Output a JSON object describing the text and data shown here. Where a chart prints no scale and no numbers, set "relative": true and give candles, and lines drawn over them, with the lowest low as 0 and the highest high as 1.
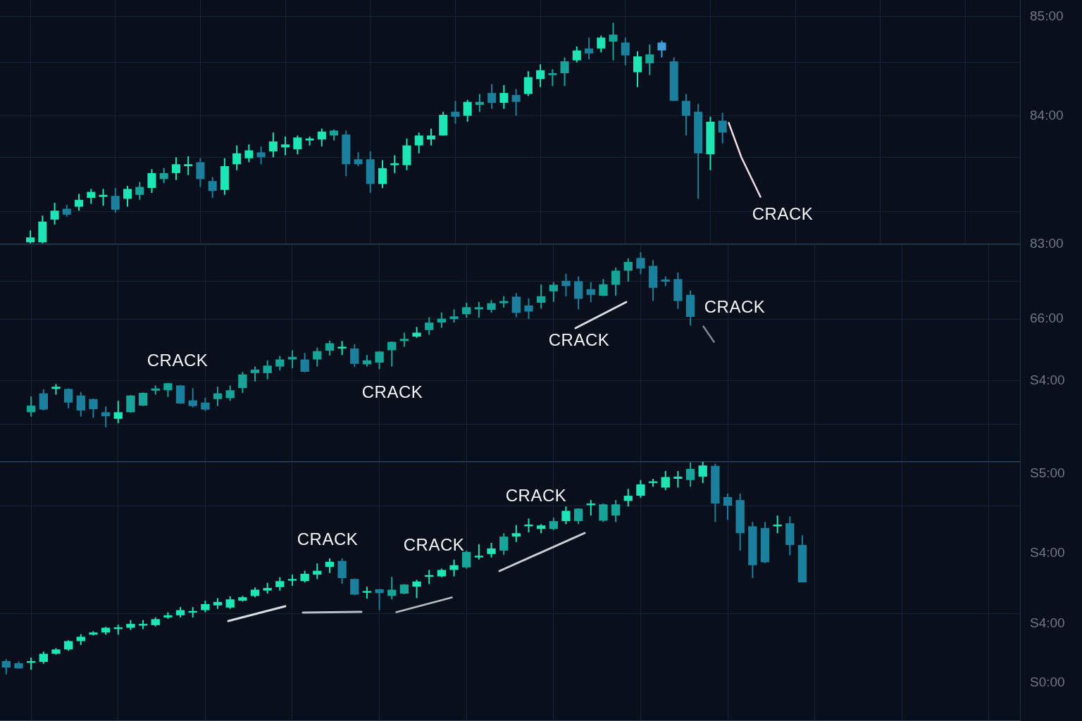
{
  "chart_data": [
    {
      "type": "candlestick",
      "categories": [
        null,
        null,
        null,
        null,
        null,
        null,
        null,
        null,
        null,
        null,
        null,
        null,
        null,
        null,
        null,
        null,
        null,
        null,
        null,
        null,
        null,
        null,
        null,
        null,
        null,
        null,
        null,
        null,
        null,
        null,
        null,
        null,
        null,
        null,
        null,
        null,
        null,
        null,
        null,
        null,
        null,
        null,
        null,
        null,
        null,
        null,
        null,
        null,
        null,
        null,
        null,
        null,
        null,
        null,
        null,
        null,
        null,
        null,
        null,
        null,
        null,
        null,
        null,
        null,
        null,
        null,
        null,
        null,
        null,
        null,
        null,
        null,
        null,
        null,
        null,
        null,
        null,
        null,
        null,
        null,
        null,
        null,
        null,
        null
      ],
      "ohlc": [
        null,
        null,
        [
          82.72,
          82.84,
          82.71,
          82.77
        ],
        [
          82.72,
          82.99,
          82.71,
          82.93
        ],
        [
          82.95,
          83.12,
          82.9,
          83.04
        ],
        [
          83.06,
          83.1,
          82.98,
          83.0
        ],
        [
          83.08,
          83.21,
          83.04,
          83.15
        ],
        [
          83.17,
          83.26,
          83.11,
          83.23
        ],
        [
          83.18,
          83.26,
          83.09,
          83.2
        ],
        [
          83.19,
          83.27,
          83.02,
          83.05
        ],
        [
          83.16,
          83.29,
          83.08,
          83.26
        ],
        [
          83.2,
          83.33,
          83.15,
          83.28
        ],
        [
          83.27,
          83.46,
          83.22,
          83.42
        ],
        [
          83.36,
          83.47,
          83.32,
          83.42
        ],
        [
          83.42,
          83.58,
          83.35,
          83.51
        ],
        [
          83.49,
          83.59,
          83.4,
          83.51
        ],
        [
          83.53,
          83.57,
          83.28,
          83.36
        ],
        [
          83.34,
          83.38,
          83.17,
          83.24
        ],
        [
          83.25,
          83.57,
          83.2,
          83.49
        ],
        [
          83.51,
          83.7,
          83.45,
          83.62
        ],
        [
          83.57,
          83.71,
          83.53,
          83.65
        ],
        [
          83.63,
          83.69,
          83.51,
          83.58
        ],
        [
          83.64,
          83.83,
          83.58,
          83.74
        ],
        [
          83.68,
          83.79,
          83.6,
          83.71
        ],
        [
          83.66,
          83.8,
          83.61,
          83.78
        ],
        [
          83.75,
          83.79,
          83.7,
          83.77
        ],
        [
          83.76,
          83.87,
          83.69,
          83.84
        ],
        [
          83.8,
          83.86,
          83.75,
          83.85
        ],
        [
          83.81,
          83.85,
          83.39,
          83.51
        ],
        [
          83.56,
          83.63,
          83.49,
          83.51
        ],
        [
          83.56,
          83.64,
          83.22,
          83.31
        ],
        [
          83.31,
          83.55,
          83.27,
          83.47
        ],
        [
          83.5,
          83.6,
          83.42,
          83.52
        ],
        [
          83.5,
          83.77,
          83.45,
          83.7
        ],
        [
          83.7,
          83.83,
          83.62,
          83.8
        ],
        [
          83.76,
          83.87,
          83.7,
          83.8
        ],
        [
          83.8,
          84.04,
          83.8,
          84.01
        ],
        [
          84.04,
          84.15,
          83.92,
          83.99
        ],
        [
          84.0,
          84.16,
          83.94,
          84.14
        ],
        [
          84.11,
          84.22,
          84.04,
          84.14
        ],
        [
          84.23,
          84.32,
          84.07,
          84.13
        ],
        [
          84.13,
          84.31,
          84.07,
          84.23
        ],
        [
          84.21,
          84.27,
          84.0,
          84.14
        ],
        [
          84.22,
          84.45,
          84.2,
          84.39
        ],
        [
          84.37,
          84.52,
          84.29,
          84.46
        ],
        [
          84.41,
          84.47,
          84.3,
          84.43
        ],
        [
          84.43,
          84.59,
          84.3,
          84.55
        ],
        [
          84.56,
          84.7,
          84.54,
          84.66
        ],
        [
          84.68,
          84.79,
          84.57,
          84.63
        ],
        [
          84.68,
          84.81,
          84.64,
          84.79
        ],
        [
          84.75,
          84.94,
          84.56,
          84.82
        ],
        [
          84.74,
          84.79,
          84.51,
          84.61
        ],
        [
          84.44,
          84.65,
          84.29,
          84.6
        ],
        [
          84.53,
          84.72,
          84.41,
          84.62
        ],
        [
          84.74,
          84.76,
          84.59,
          84.66
        ],
        [
          84.55,
          84.59,
          84.15,
          84.15
        ],
        [
          84.15,
          84.22,
          83.8,
          84.0
        ],
        [
          84.04,
          84.12,
          83.16,
          83.62
        ],
        [
          83.61,
          83.99,
          83.45,
          83.94
        ],
        [
          83.95,
          84.03,
          83.72,
          83.83
        ],
        null,
        null,
        null,
        null,
        null,
        null,
        null,
        null,
        null,
        null,
        null,
        null,
        null,
        null,
        null,
        null,
        null,
        null,
        null,
        null,
        null,
        null,
        null,
        null
      ],
      "colors": [
        null,
        null,
        "#1de5b5",
        "#1de5b5",
        "#1de5b5",
        "#1b7f9e",
        "#1de5b5",
        "#1de5b5",
        "#1de5b5",
        "#1b7f9e",
        "#1de5b5",
        "#17a59a",
        "#1de5b5",
        "#17a59a",
        "#1de5b5",
        "#1de5b5",
        "#1b7f9e",
        "#1b7f9e",
        "#1de5b5",
        "#1de5b5",
        "#1de5b5",
        "#1b7f9e",
        "#1de5b5",
        "#1de5b5",
        "#1de5b5",
        "#1de5b5",
        "#1de5b5",
        "#17a59a",
        "#1b7f9e",
        "#1b7f9e",
        "#1b7f9e",
        "#1de5b5",
        "#1de5b5",
        "#1de5b5",
        "#1de5b5",
        "#1de5b5",
        "#1de5b5",
        "#1b7f9e",
        "#1de5b5",
        "#17a59a",
        "#1b7f9e",
        "#1de5b5",
        "#1b7f9e",
        "#1de5b5",
        "#1de5b5",
        "#17a59a",
        "#17a59a",
        "#1de5b5",
        "#1b7f9e",
        "#1de5b5",
        "#17a59a",
        "#1b7f9e",
        "#1de5b5",
        "#17a59a",
        "#3d9fdc",
        "#1b7f9e",
        "#1b7f9e",
        "#1b7f9e",
        "#1de5b5",
        "#1b7f9e",
        null,
        null,
        null,
        null,
        null,
        null,
        null,
        null,
        null,
        null,
        null,
        null,
        null,
        null,
        null,
        null,
        null,
        null,
        null,
        null,
        null,
        null,
        null,
        null
      ],
      "ylim": [
        82.7,
        85.17
      ],
      "yticks": [
        {
          "value": 85,
          "label": "85:00"
        },
        {
          "value": 84.54,
          "label": null
        },
        {
          "value": 84,
          "label": "84:00"
        },
        {
          "value": 83.58,
          "label": null
        },
        {
          "value": 83.03,
          "label": null
        }
      ],
      "grid": true,
      "tick_labels": "y",
      "annotations": [
        "CRACK"
      ]
    },
    {
      "type": "candlestick",
      "categories": [
        null,
        null,
        null,
        null,
        null,
        null,
        null,
        null,
        null,
        null,
        null,
        null,
        null,
        null,
        null,
        null,
        null,
        null,
        null,
        null,
        null,
        null,
        null,
        null,
        null,
        null,
        null,
        null,
        null,
        null,
        null,
        null,
        null,
        null,
        null,
        null,
        null,
        null,
        null,
        null,
        null,
        null,
        null,
        null,
        null,
        null,
        null,
        null,
        null,
        null,
        null,
        null,
        null,
        null,
        null,
        null,
        null,
        null,
        null,
        null,
        null,
        null,
        null,
        null,
        null,
        null,
        null,
        null,
        null,
        null,
        null,
        null,
        null,
        null,
        null,
        null,
        null,
        null,
        null,
        null,
        null,
        null
      ],
      "ohlc": [
        null,
        null,
        [
          44.8,
          48.4,
          43.8,
          46.3
        ],
        [
          49.1,
          50.0,
          45.2,
          45.4
        ],
        [
          50.1,
          51.2,
          48.8,
          50.6
        ],
        [
          50.1,
          50.2,
          45.7,
          47.0
        ],
        [
          48.6,
          49.4,
          43.8,
          45.2
        ],
        [
          47.8,
          47.9,
          43.5,
          45.5
        ],
        [
          44.8,
          46.1,
          41.4,
          43.9
        ],
        [
          43.3,
          47.4,
          42.3,
          44.8
        ],
        [
          44.8,
          48.7,
          44.7,
          48.6
        ],
        [
          46.3,
          49.3,
          46.2,
          49.2
        ],
        [
          49.7,
          50.9,
          48.8,
          50.2
        ],
        [
          49.8,
          51.5,
          48.3,
          51.4
        ],
        [
          50.9,
          51.0,
          46.7,
          46.8
        ],
        [
          47.5,
          50.3,
          45.9,
          46.2
        ],
        [
          47.0,
          48.1,
          45.1,
          45.4
        ],
        [
          47.8,
          50.6,
          46.2,
          49.1
        ],
        [
          48.0,
          50.9,
          47.4,
          49.8
        ],
        [
          50.3,
          54.0,
          49.2,
          53.4
        ],
        [
          53.7,
          55.2,
          51.8,
          54.5
        ],
        [
          53.7,
          56.6,
          52.3,
          55.4
        ],
        [
          55.2,
          57.6,
          54.3,
          56.8
        ],
        [
          56.8,
          58.9,
          54.8,
          57.4
        ],
        [
          56.8,
          58.3,
          53.9,
          54.0
        ],
        [
          56.8,
          59.5,
          55.2,
          58.7
        ],
        [
          58.8,
          61.1,
          57.7,
          60.5
        ],
        [
          59.3,
          61.0,
          57.8,
          59.7
        ],
        [
          59.3,
          60.3,
          55.1,
          55.8
        ],
        [
          55.7,
          57.8,
          55.2,
          56.6
        ],
        [
          56.1,
          58.7,
          54.6,
          58.6
        ],
        [
          58.9,
          60.9,
          55.2,
          60.8
        ],
        [
          61.0,
          62.9,
          59.7,
          61.5
        ],
        [
          62.0,
          64.2,
          61.7,
          62.9
        ],
        [
          63.5,
          66.4,
          62.4,
          65.2
        ],
        [
          65.2,
          67.5,
          64.0,
          66.1
        ],
        [
          66.0,
          68.2,
          65.2,
          66.6
        ],
        [
          67.1,
          69.7,
          66.3,
          68.7
        ],
        [
          68.2,
          69.9,
          66.3,
          68.7
        ],
        [
          68.1,
          70.3,
          67.5,
          69.6
        ],
        [
          69.6,
          71.2,
          68.6,
          70.1
        ],
        [
          71.1,
          71.9,
          66.4,
          67.4
        ],
        [
          69.1,
          70.7,
          66.0,
          67.7
        ],
        [
          69.7,
          73.9,
          68.4,
          71.2
        ],
        [
          72.3,
          74.4,
          69.9,
          73.8
        ],
        [
          74.7,
          76.3,
          71.2,
          73.5
        ],
        [
          74.6,
          75.7,
          68.2,
          70.6
        ],
        [
          72.8,
          74.4,
          69.8,
          71.5
        ],
        [
          71.3,
          75.1,
          71.2,
          73.9
        ],
        [
          73.8,
          77.7,
          71.3,
          77.0
        ],
        [
          77.0,
          79.8,
          74.5,
          79.0
        ],
        [
          79.9,
          81.2,
          76.2,
          77.5
        ],
        [
          78.1,
          79.4,
          70.1,
          73.1
        ],
        [
          75.0,
          75.7,
          73.5,
          74.5
        ],
        [
          75.1,
          76.6,
          68.3,
          70.1
        ],
        [
          71.5,
          72.5,
          64.5,
          66.5
        ],
        null,
        null,
        null,
        null,
        null,
        null,
        null,
        null,
        null,
        null,
        null,
        null,
        null,
        null,
        null,
        null,
        null,
        null,
        null,
        null,
        null,
        null,
        null,
        null,
        null,
        null
      ],
      "colors": [
        null,
        null,
        "#17a59a",
        "#1b7f9e",
        "#1de5b5",
        "#1b7f9e",
        "#1b7f9e",
        "#1b7f9e",
        "#1b7f9e",
        "#1de5b5",
        "#17a59a",
        "#17a59a",
        "#17a59a",
        "#17a59a",
        "#1b7f9e",
        "#1b7f9e",
        "#1b7f9e",
        "#17a59a",
        "#17a59a",
        "#17a59a",
        "#17a59a",
        "#17a59a",
        "#17a59a",
        "#17a59a",
        "#1b7f9e",
        "#17a59a",
        "#17a59a",
        "#1de5b5",
        "#1b7f9e",
        "#17a59a",
        "#17a59a",
        "#17a59a",
        "#17a59a",
        "#1de5b5",
        "#17a59a",
        "#17a59a",
        "#17a59a",
        "#17a59a",
        "#17a59a",
        "#17a59a",
        "#17a59a",
        "#1b7f9e",
        "#1b7f9e",
        "#17a59a",
        "#17a59a",
        "#1b7f9e",
        "#1b7f9e",
        "#1b7f9e",
        "#17a59a",
        "#17a59a",
        "#17a59a",
        "#1b7f9e",
        "#1b7f9e",
        "#1b7f9e",
        "#1b7f9e",
        "#1b7f9e",
        null,
        null,
        null,
        null,
        null,
        null,
        null,
        null,
        null,
        null,
        null,
        null,
        null,
        null,
        null,
        null,
        null,
        null,
        null,
        null,
        null,
        null,
        null,
        null,
        null,
        null
      ],
      "ylim": [
        33.5,
        83
      ],
      "yticks": [
        {
          "value": 83,
          "label": "83:00"
        },
        {
          "value": 74.6,
          "label": null
        },
        {
          "value": 66,
          "label": "66:00"
        },
        {
          "value": 52,
          "label": "S4:00"
        },
        {
          "value": 42,
          "label": null
        }
      ],
      "grid": true,
      "tick_labels": "y",
      "annotations": [
        "CRACK",
        "CRACK",
        "CRACK",
        "CRACK"
      ]
    },
    {
      "type": "candlestick",
      "relative": true,
      "categories": [
        null,
        null,
        null,
        null,
        null,
        null,
        null,
        null,
        null,
        null,
        null,
        null,
        null,
        null,
        null,
        null,
        null,
        null,
        null,
        null,
        null,
        null,
        null,
        null,
        null,
        null,
        null,
        null,
        null,
        null,
        null,
        null,
        null,
        null,
        null,
        null,
        null,
        null,
        null,
        null,
        null,
        null,
        null,
        null,
        null,
        null,
        null,
        null,
        null,
        null,
        null,
        null,
        null,
        null,
        null,
        null,
        null,
        null,
        null,
        null,
        null,
        null,
        null,
        null,
        null,
        null,
        null,
        null,
        null,
        null,
        null,
        null,
        null,
        null,
        null,
        null,
        null,
        null,
        null,
        null,
        null,
        null
      ],
      "ohlc": [
        [
          0.062,
          0.07,
          0,
          0.032
        ],
        [
          0.052,
          0.06,
          0.026,
          0.028
        ],
        [
          0.054,
          0.078,
          0.022,
          0.062
        ],
        [
          0.058,
          0.106,
          0.05,
          0.096
        ],
        [
          0.096,
          0.122,
          0.092,
          0.116
        ],
        [
          0.116,
          0.159,
          0.11,
          0.155
        ],
        [
          0.155,
          0.187,
          0.137,
          0.175
        ],
        [
          0.185,
          0.201,
          0.181,
          0.195
        ],
        [
          0.195,
          0.221,
          0.185,
          0.217
        ],
        [
          0.211,
          0.231,
          0.185,
          0.219
        ],
        [
          0.217,
          0.253,
          0.207,
          0.235
        ],
        [
          0.227,
          0.253,
          0.211,
          0.235
        ],
        [
          0.229,
          0.265,
          0.223,
          0.257
        ],
        [
          0.265,
          0.289,
          0.259,
          0.275
        ],
        [
          0.275,
          0.313,
          0.265,
          0.299
        ],
        [
          0.287,
          0.313,
          0.265,
          0.295
        ],
        [
          0.299,
          0.343,
          0.289,
          0.327
        ],
        [
          0.321,
          0.355,
          0.305,
          0.337
        ],
        [
          0.311,
          0.363,
          0.305,
          0.349
        ],
        [
          0.343,
          0.365,
          0.339,
          0.359
        ],
        [
          0.365,
          0.404,
          0.359,
          0.394
        ],
        [
          0.39,
          0.426,
          0.376,
          0.402
        ],
        [
          0.406,
          0.452,
          0.39,
          0.434
        ],
        [
          0.436,
          0.464,
          0.412,
          0.444
        ],
        [
          0.434,
          0.482,
          0.428,
          0.468
        ],
        [
          0.464,
          0.516,
          0.444,
          0.482
        ],
        [
          0.5,
          0.54,
          0.472,
          0.524
        ],
        [
          0.528,
          0.54,
          0.422,
          0.448
        ],
        [
          0.444,
          0.446,
          0.369,
          0.371
        ],
        [
          0.38,
          0.408,
          0.353,
          0.388
        ],
        [
          0.396,
          0.398,
          0.299,
          0.378
        ],
        [
          0.365,
          0.454,
          0.349,
          0.394
        ],
        [
          0.376,
          0.42,
          0.373,
          0.418
        ],
        [
          0.408,
          0.44,
          0.355,
          0.432
        ],
        [
          0.454,
          0.486,
          0.42,
          0.462
        ],
        [
          0.456,
          0.492,
          0.452,
          0.486
        ],
        [
          0.486,
          0.534,
          0.456,
          0.508
        ],
        [
          0.498,
          0.576,
          0.492,
          0.57
        ],
        [
          0.544,
          0.606,
          0.534,
          0.552
        ],
        [
          0.56,
          0.612,
          0.544,
          0.586
        ],
        [
          0.576,
          0.657,
          0.556,
          0.641
        ],
        [
          0.641,
          0.695,
          0.616,
          0.657
        ],
        [
          0.689,
          0.725,
          0.661,
          0.697
        ],
        [
          0.677,
          0.699,
          0.657,
          0.693
        ],
        [
          0.677,
          0.729,
          0.671,
          0.713
        ],
        [
          0.713,
          0.781,
          0.699,
          0.761
        ],
        [
          0.713,
          0.773,
          0.699,
          0.771
        ],
        [
          0.787,
          0.811,
          0.739,
          0.795
        ],
        [
          0.715,
          0.795,
          0.709,
          0.791
        ],
        [
          0.739,
          0.811,
          0.709,
          0.791
        ],
        [
          0.807,
          0.863,
          0.781,
          0.831
        ],
        [
          0.831,
          0.904,
          0.821,
          0.884
        ],
        [
          0.89,
          0.91,
          0.873,
          0.898
        ],
        [
          0.869,
          0.946,
          0.857,
          0.918
        ],
        [
          0.91,
          0.946,
          0.869,
          0.92
        ],
        [
          0.904,
          0.986,
          0.873,
          0.956
        ],
        [
          0.92,
          1,
          0.89,
          0.972
        ],
        [
          0.97,
          0.98,
          0.709,
          0.795
        ],
        [
          0.825,
          0.841,
          0.719,
          0.785
        ],
        [
          0.811,
          0.841,
          0.576,
          0.657
        ],
        [
          0.689,
          0.709,
          0.448,
          0.508
        ],
        [
          0.681,
          0.709,
          0.518,
          0.522
        ],
        [
          0.689,
          0.739,
          0.657,
          0.697
        ],
        [
          0.703,
          0.735,
          0.554,
          0.602
        ],
        [
          0.602,
          0.647,
          0.428,
          0.428
        ],
        null,
        null,
        null,
        null,
        null,
        null,
        null,
        null,
        null,
        null,
        null,
        null,
        null,
        null,
        null,
        null,
        null
      ],
      "colors": [
        "#1b7f9e",
        "#1b7f9e",
        "#1de5b5",
        "#1de5b5",
        "#1de5b5",
        "#1de5b5",
        "#1de5b5",
        "#1de5b5",
        "#1de5b5",
        "#1de5b5",
        "#1de5b5",
        "#1de5b5",
        "#1de5b5",
        "#1de5b5",
        "#1de5b5",
        "#1de5b5",
        "#1de5b5",
        "#1de5b5",
        "#1de5b5",
        "#1de5b5",
        "#1de5b5",
        "#1de5b5",
        "#1de5b5",
        "#1de5b5",
        "#1de5b5",
        "#1de5b5",
        "#1de5b5",
        "#1b7f9e",
        "#1b7f9e",
        "#1de5b5",
        "#1b7f9e",
        "#17a59a",
        "#17a59a",
        "#1de5b5",
        "#1de5b5",
        "#1de5b5",
        "#1de5b5",
        "#17a59a",
        "#1de5b5",
        "#1de5b5",
        "#17a59a",
        "#1de5b5",
        "#1de5b5",
        "#1de5b5",
        "#17a59a",
        "#1de5b5",
        "#17a59a",
        "#1de5b5",
        "#17a59a",
        "#17a59a",
        "#1de5b5",
        "#1de5b5",
        "#1de5b5",
        "#1de5b5",
        "#1de5b5",
        "#17a59a",
        "#1de5b5",
        "#1b7f9e",
        "#1b7f9e",
        "#1b7f9e",
        "#1b7f9e",
        "#1b7f9e",
        "#1de5b5",
        "#1b7f9e",
        "#1b7f9e",
        null,
        null,
        null,
        null,
        null,
        null,
        null,
        null,
        null,
        null,
        null,
        null,
        null,
        null,
        null,
        null,
        null
      ],
      "grid": true,
      "tick_labels": false,
      "annotations": [
        "CRACK",
        "CRACK",
        "CRACK",
        "S5:00",
        "S4:00",
        "S4:00",
        "S0:00"
      ]
    }
  ]
}
